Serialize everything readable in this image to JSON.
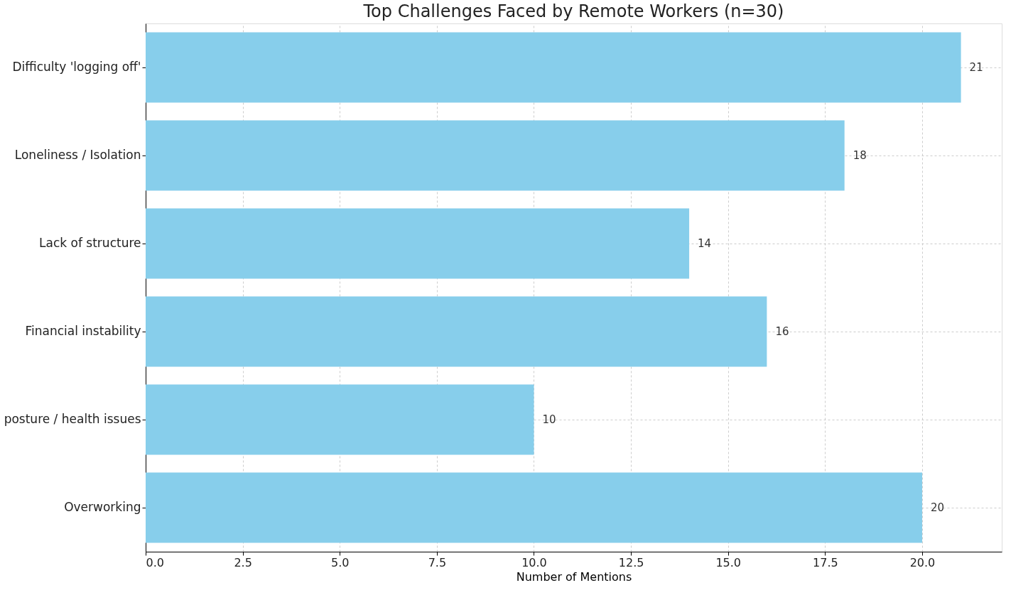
{
  "chart_data": {
    "type": "bar",
    "orientation": "horizontal",
    "title": "Top Challenges Faced by Remote Workers (n=30)",
    "xlabel": "Number of Mentions",
    "categories": [
      "Difficulty 'logging off'",
      "Loneliness / Isolation",
      "Lack of structure",
      "Financial instability",
      "posture / health issues",
      "Overworking"
    ],
    "values": [
      21,
      18,
      14,
      16,
      10,
      20
    ],
    "color": "#87ceeb",
    "xlim": [
      0,
      22.05
    ],
    "xticks": [
      {
        "value": 0,
        "label": "0.0"
      },
      {
        "value": 2.5,
        "label": "2.5"
      },
      {
        "value": 5,
        "label": "5.0"
      },
      {
        "value": 7.5,
        "label": "7.5"
      },
      {
        "value": 10,
        "label": "10.0"
      },
      {
        "value": 12.5,
        "label": "12.5"
      },
      {
        "value": 15,
        "label": "15.0"
      },
      {
        "value": 17.5,
        "label": "17.5"
      },
      {
        "value": 20,
        "label": "20.0"
      }
    ],
    "grid": true,
    "data_labels": true
  }
}
